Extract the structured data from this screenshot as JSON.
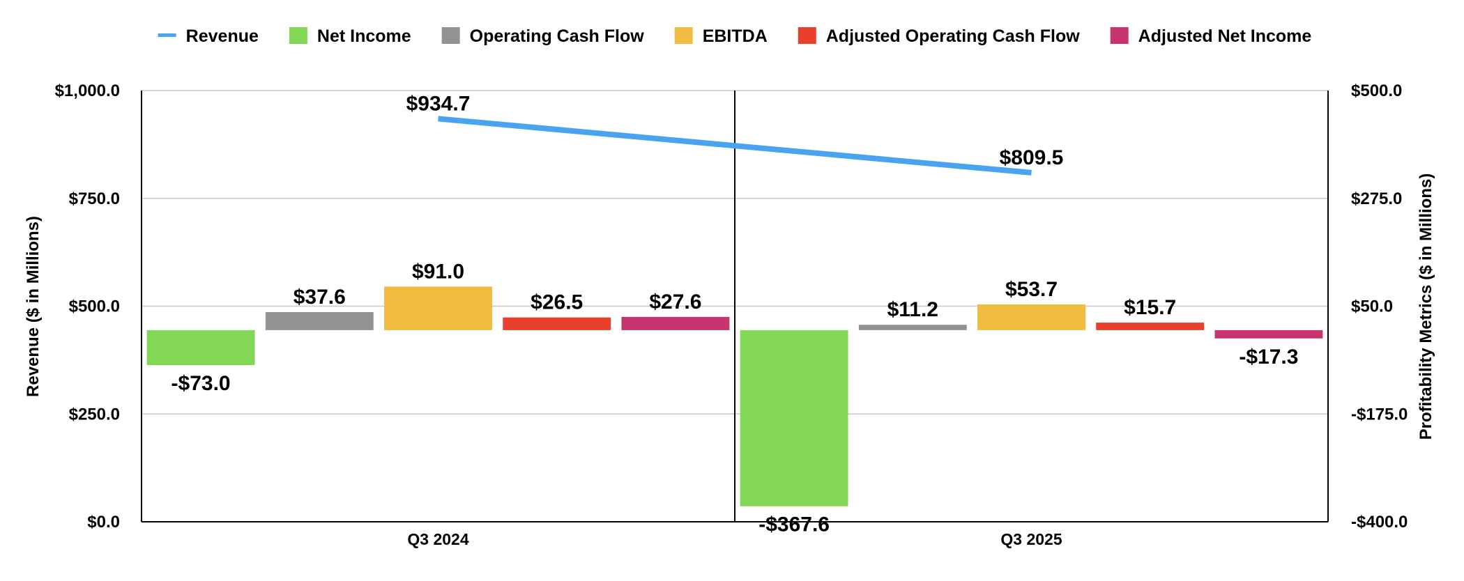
{
  "chart_data": {
    "type": "bar",
    "categories": [
      "Q3 2024",
      "Q3 2025"
    ],
    "left_axis": {
      "label": "Revenue ($ in Millions)",
      "ylim": [
        0,
        1000
      ],
      "ticks": [
        "$0.0",
        "$250.0",
        "$500.0",
        "$750.0",
        "$1,000.0"
      ],
      "tick_values": [
        0,
        250,
        500,
        750,
        1000
      ]
    },
    "right_axis": {
      "label": "Profitability Metrics ($ in Millions)",
      "ylim": [
        -400,
        500
      ],
      "ticks": [
        "-$400.0",
        "-$175.0",
        "$50.0",
        "$275.0",
        "$500.0"
      ],
      "tick_values": [
        -400,
        -175,
        50,
        275,
        500
      ]
    },
    "grid": true,
    "legend_position": "top",
    "series": [
      {
        "name": "Revenue",
        "kind": "line",
        "axis": "left",
        "color": "#4aa3f0",
        "values": [
          934.7,
          809.5
        ],
        "labels": [
          "$934.7",
          "$809.5"
        ]
      },
      {
        "name": "Net Income",
        "kind": "bar",
        "axis": "right",
        "color": "#82d854",
        "values": [
          -73.0,
          -367.6
        ],
        "labels": [
          "-$73.0",
          "-$367.6"
        ]
      },
      {
        "name": "Operating Cash Flow",
        "kind": "bar",
        "axis": "right",
        "color": "#929292",
        "values": [
          37.6,
          11.2
        ],
        "labels": [
          "$37.6",
          "$11.2"
        ]
      },
      {
        "name": "EBITDA",
        "kind": "bar",
        "axis": "right",
        "color": "#f0bd41",
        "values": [
          91.0,
          53.7
        ],
        "labels": [
          "$91.0",
          "$53.7"
        ]
      },
      {
        "name": "Adjusted Operating Cash Flow",
        "kind": "bar",
        "axis": "right",
        "color": "#e8402c",
        "values": [
          26.5,
          15.7
        ],
        "labels": [
          "$26.5",
          "$15.7"
        ]
      },
      {
        "name": "Adjusted Net Income",
        "kind": "bar",
        "axis": "right",
        "color": "#c7346f",
        "values": [
          27.6,
          -17.3
        ],
        "labels": [
          "$27.6",
          "-$17.3"
        ]
      }
    ]
  }
}
